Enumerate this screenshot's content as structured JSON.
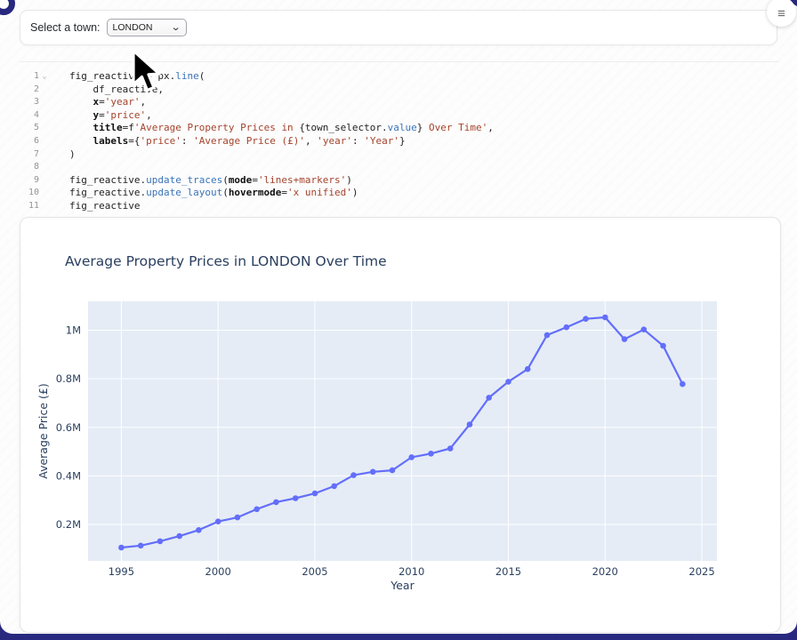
{
  "icons": {
    "menu": "≡",
    "chevron_down": "⌄",
    "fold": "⌄"
  },
  "widget_bar": {
    "label": "Select a town:",
    "dropdown_value": "LONDON"
  },
  "code_editor": {
    "lines": [
      {
        "num": "1",
        "fold": true,
        "tokens": [
          [
            "fig_reactive = px.",
            "p"
          ],
          [
            "line",
            "f"
          ],
          [
            "(",
            "p"
          ]
        ]
      },
      {
        "num": "2",
        "tokens": [
          [
            "    df_reactive,",
            "p"
          ]
        ]
      },
      {
        "num": "3",
        "tokens": [
          [
            "    ",
            "p"
          ],
          [
            "x",
            "k"
          ],
          [
            "=",
            "p"
          ],
          [
            "'year'",
            "s"
          ],
          [
            ",",
            "p"
          ]
        ]
      },
      {
        "num": "4",
        "tokens": [
          [
            "    ",
            "p"
          ],
          [
            "y",
            "k"
          ],
          [
            "=",
            "p"
          ],
          [
            "'price'",
            "s"
          ],
          [
            ",",
            "p"
          ]
        ]
      },
      {
        "num": "5",
        "tokens": [
          [
            "    ",
            "p"
          ],
          [
            "title",
            "k"
          ],
          [
            "=f",
            "p"
          ],
          [
            "'Average Property Prices in ",
            "s"
          ],
          [
            "{town_selector",
            "p"
          ],
          [
            ".",
            "p"
          ],
          [
            "value",
            "f"
          ],
          [
            "}",
            "p"
          ],
          [
            " Over Time'",
            "s"
          ],
          [
            ",",
            "p"
          ]
        ]
      },
      {
        "num": "6",
        "tokens": [
          [
            "    ",
            "p"
          ],
          [
            "labels",
            "k"
          ],
          [
            "={",
            "p"
          ],
          [
            "'price'",
            "s"
          ],
          [
            ": ",
            "p"
          ],
          [
            "'Average Price (£)'",
            "s"
          ],
          [
            ", ",
            "p"
          ],
          [
            "'year'",
            "s"
          ],
          [
            ": ",
            "p"
          ],
          [
            "'Year'",
            "s"
          ],
          [
            "}",
            "p"
          ]
        ]
      },
      {
        "num": "7",
        "tokens": [
          [
            ")",
            "p"
          ]
        ]
      },
      {
        "num": "8",
        "tokens": []
      },
      {
        "num": "9",
        "tokens": [
          [
            "fig_reactive.",
            "p"
          ],
          [
            "update_traces",
            "f"
          ],
          [
            "(",
            "p"
          ],
          [
            "mode",
            "k"
          ],
          [
            "=",
            "p"
          ],
          [
            "'lines+markers'",
            "s"
          ],
          [
            ")",
            "p"
          ]
        ]
      },
      {
        "num": "10",
        "tokens": [
          [
            "fig_reactive.",
            "p"
          ],
          [
            "update_layout",
            "f"
          ],
          [
            "(",
            "p"
          ],
          [
            "hovermode",
            "k"
          ],
          [
            "=",
            "p"
          ],
          [
            "'x unified'",
            "s"
          ],
          [
            ")",
            "p"
          ]
        ]
      },
      {
        "num": "11",
        "tokens": [
          [
            "fig_reactive",
            "p"
          ]
        ]
      }
    ]
  },
  "chart_data": {
    "type": "line",
    "title": "Average Property Prices in LONDON Over Time",
    "xlabel": "Year",
    "ylabel": "Average Price (£)",
    "mode": "lines+markers",
    "x": [
      1995,
      1996,
      1997,
      1998,
      1999,
      2000,
      2001,
      2002,
      2003,
      2004,
      2005,
      2006,
      2007,
      2008,
      2009,
      2010,
      2011,
      2012,
      2013,
      2014,
      2015,
      2016,
      2017,
      2018,
      2019,
      2020,
      2021,
      2022,
      2023,
      2024
    ],
    "values_millions": [
      0.105,
      0.113,
      0.131,
      0.152,
      0.177,
      0.212,
      0.229,
      0.263,
      0.292,
      0.308,
      0.328,
      0.358,
      0.403,
      0.417,
      0.423,
      0.477,
      0.492,
      0.513,
      0.612,
      0.722,
      0.788,
      0.84,
      0.98,
      1.012,
      1.047,
      1.053,
      0.963,
      1.003,
      0.936,
      0.778
    ],
    "xlim": [
      1993.28,
      2025.78
    ],
    "ylim_millions": [
      0.05,
      1.119
    ],
    "xticks": [
      {
        "v": 1995,
        "label": "1995"
      },
      {
        "v": 2000,
        "label": "2000"
      },
      {
        "v": 2005,
        "label": "2005"
      },
      {
        "v": 2010,
        "label": "2010"
      },
      {
        "v": 2015,
        "label": "2015"
      },
      {
        "v": 2020,
        "label": "2020"
      },
      {
        "v": 2025,
        "label": "2025"
      }
    ],
    "yticks": [
      {
        "v": 0.2,
        "label": "0.2M"
      },
      {
        "v": 0.4,
        "label": "0.4M"
      },
      {
        "v": 0.6,
        "label": "0.6M"
      },
      {
        "v": 0.8,
        "label": "0.8M"
      },
      {
        "v": 1.0,
        "label": "1M"
      }
    ],
    "grid": true,
    "legend": "none",
    "colors": {
      "line": "#636efa",
      "plot_bg": "#e5ecf6",
      "grid": "#ffffff",
      "text": "#2a3f5f"
    }
  }
}
